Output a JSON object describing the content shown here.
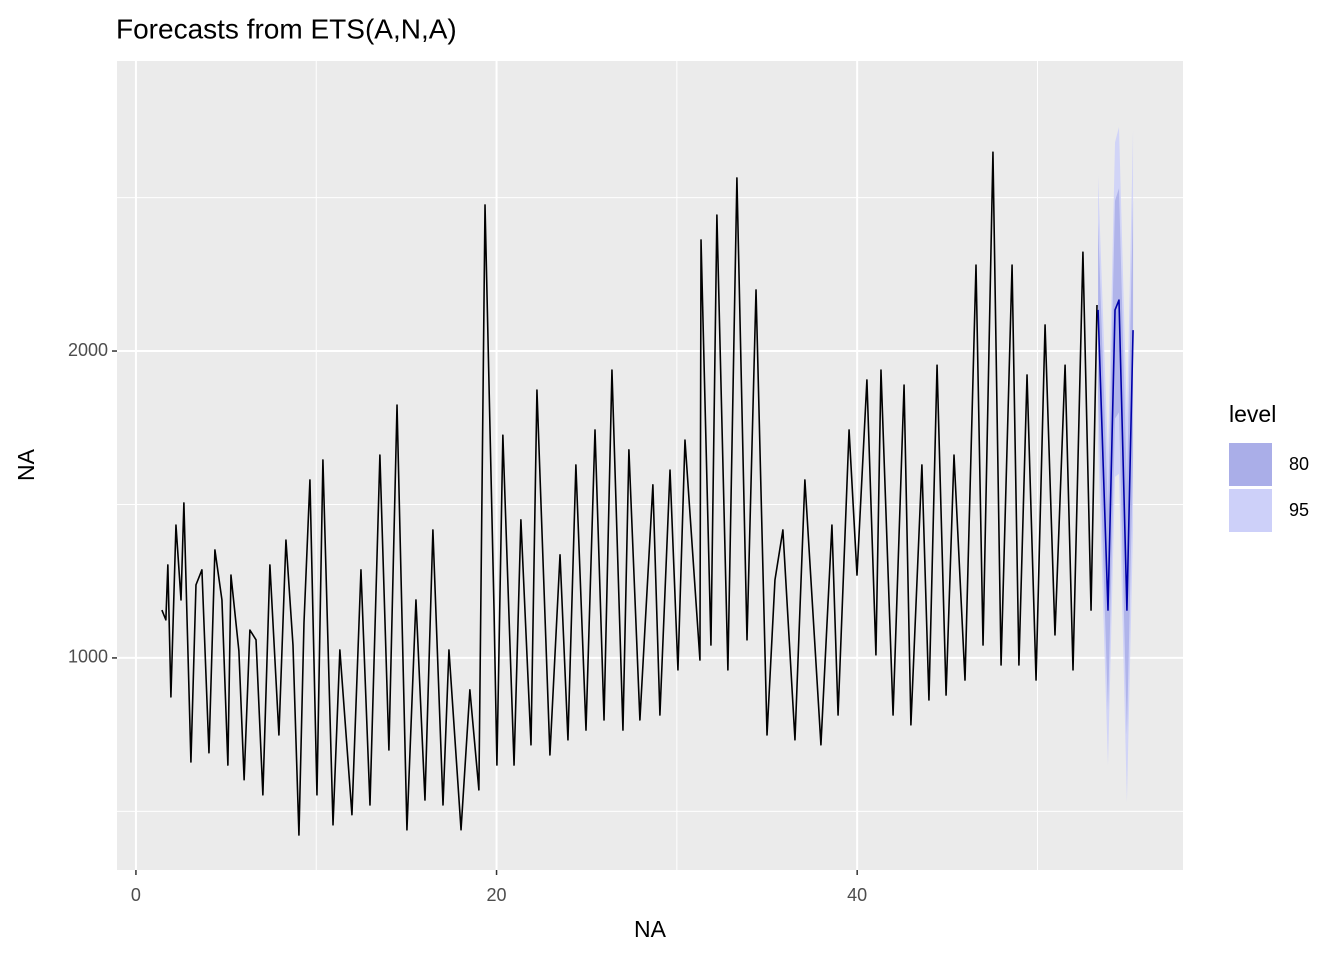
{
  "chart_data": {
    "type": "line",
    "title": "Forecasts from ETS(A,N,A)",
    "x_label": "NA",
    "y_label": "NA",
    "xlim": [
      -1.05,
      58.07
    ],
    "ylim": [
      309,
      2945
    ],
    "xticks": [
      0,
      20,
      40
    ],
    "yticks": [
      1000,
      2000
    ],
    "grid": true,
    "minor_grid": true,
    "series": [
      {
        "color": "#000000",
        "x": [
          1.44,
          1.66,
          1.77,
          1.94,
          2.22,
          2.5,
          2.66,
          3.05,
          3.33,
          3.66,
          4.05,
          4.38,
          4.77,
          5.1,
          5.27,
          5.71,
          6.0,
          6.32,
          6.66,
          7.04,
          7.43,
          7.93,
          8.32,
          8.71,
          9.04,
          9.32,
          9.65,
          10.04,
          10.37,
          10.93,
          11.31,
          11.98,
          12.48,
          12.98,
          13.53,
          14.03,
          14.48,
          15.03,
          15.53,
          16.03,
          16.47,
          17.03,
          17.36,
          18.03,
          18.52,
          19.02,
          19.36,
          19.86,
          20.02,
          20.35,
          20.97,
          21.35,
          21.91,
          22.24,
          22.96,
          23.52,
          23.96,
          24.4,
          24.96,
          25.46,
          25.96,
          26.4,
          27.01,
          27.34,
          27.95,
          28.67,
          29.06,
          29.62,
          30.06,
          30.45,
          31.28,
          31.34,
          31.89,
          32.22,
          32.83,
          33.33,
          33.89,
          34.39,
          35.0,
          35.44,
          35.88,
          36.55,
          37.1,
          37.99,
          38.6,
          38.94,
          39.55,
          39.99,
          40.54,
          41.04,
          41.32,
          41.99,
          42.6,
          42.98,
          43.59,
          43.98,
          44.43,
          44.93,
          45.37,
          45.98,
          46.59,
          46.98,
          47.53,
          47.98,
          48.59,
          48.97,
          49.42,
          49.92,
          50.42,
          50.97,
          51.53,
          51.97,
          52.52,
          52.97,
          53.3
        ],
        "values": [
          1156,
          1124,
          1303,
          873,
          1433,
          1189,
          1505,
          661,
          1238,
          1287,
          691,
          1352,
          1189,
          651,
          1270,
          1023,
          603,
          1091,
          1059,
          554,
          1303,
          749,
          1384,
          1042,
          423,
          1114,
          1580,
          554,
          1645,
          456,
          1026,
          489,
          1287,
          521,
          1661,
          700,
          1824,
          440,
          1189,
          537,
          1417,
          521,
          1026,
          440,
          896,
          570,
          2476,
          1156,
          651,
          1726,
          651,
          1450,
          717,
          1873,
          684,
          1336,
          733,
          1629,
          765,
          1743,
          798,
          1938,
          765,
          1678,
          798,
          1564,
          814,
          1612,
          961,
          1710,
          993,
          2362,
          1042,
          2443,
          961,
          2564,
          1059,
          2199,
          749,
          1254,
          1417,
          733,
          1580,
          717,
          1433,
          814,
          1743,
          1270,
          1906,
          1010,
          1938,
          814,
          1889,
          782,
          1629,
          863,
          1954,
          879,
          1661,
          928,
          2280,
          1042,
          2648,
          977,
          2280,
          977,
          1922,
          928,
          2085,
          1075,
          1954,
          961,
          2322,
          1156,
          2150
        ]
      },
      {
        "color": "#0000aa",
        "x": [
          53.36,
          53.91,
          54.3,
          54.52,
          54.96,
          55.3
        ],
        "values": [
          2134,
          1156,
          2134,
          2166,
          1156,
          2068
        ]
      }
    ],
    "intervals": {
      "title": "level",
      "x": [
        53.36,
        53.91,
        54.3,
        54.52,
        54.96,
        55.3
      ],
      "bands": [
        {
          "name": "80",
          "color": "#aaaee8",
          "lower": [
            1850,
            830,
            1780,
            1800,
            750,
            1650
          ],
          "upper": [
            2420,
            1480,
            2490,
            2530,
            1560,
            2490
          ]
        },
        {
          "name": "95",
          "color": "#cdd0f9",
          "lower": [
            1700,
            650,
            1590,
            1600,
            530,
            1420
          ],
          "upper": [
            2570,
            1660,
            2680,
            2730,
            1780,
            2720
          ]
        }
      ]
    }
  }
}
